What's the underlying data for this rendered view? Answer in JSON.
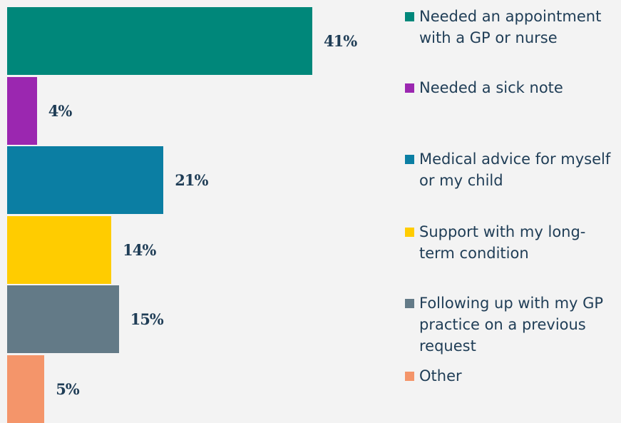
{
  "chart_data": {
    "type": "bar",
    "orientation": "horizontal",
    "categories": [
      "Needed an appointment with a GP or nurse",
      "Needed a sick note",
      "Medical advice for myself or my child",
      "Support with my long-term condition",
      "Following up with my GP practice on a previous request",
      "Other"
    ],
    "values": [
      41,
      4,
      21,
      14,
      15,
      5
    ],
    "value_labels": [
      "41%",
      "4%",
      "21%",
      "14%",
      "15%",
      "5%"
    ],
    "colors": [
      "#00877a",
      "#9b27b0",
      "#0b7ea3",
      "#ffcc00",
      "#637a87",
      "#f4956a"
    ]
  }
}
